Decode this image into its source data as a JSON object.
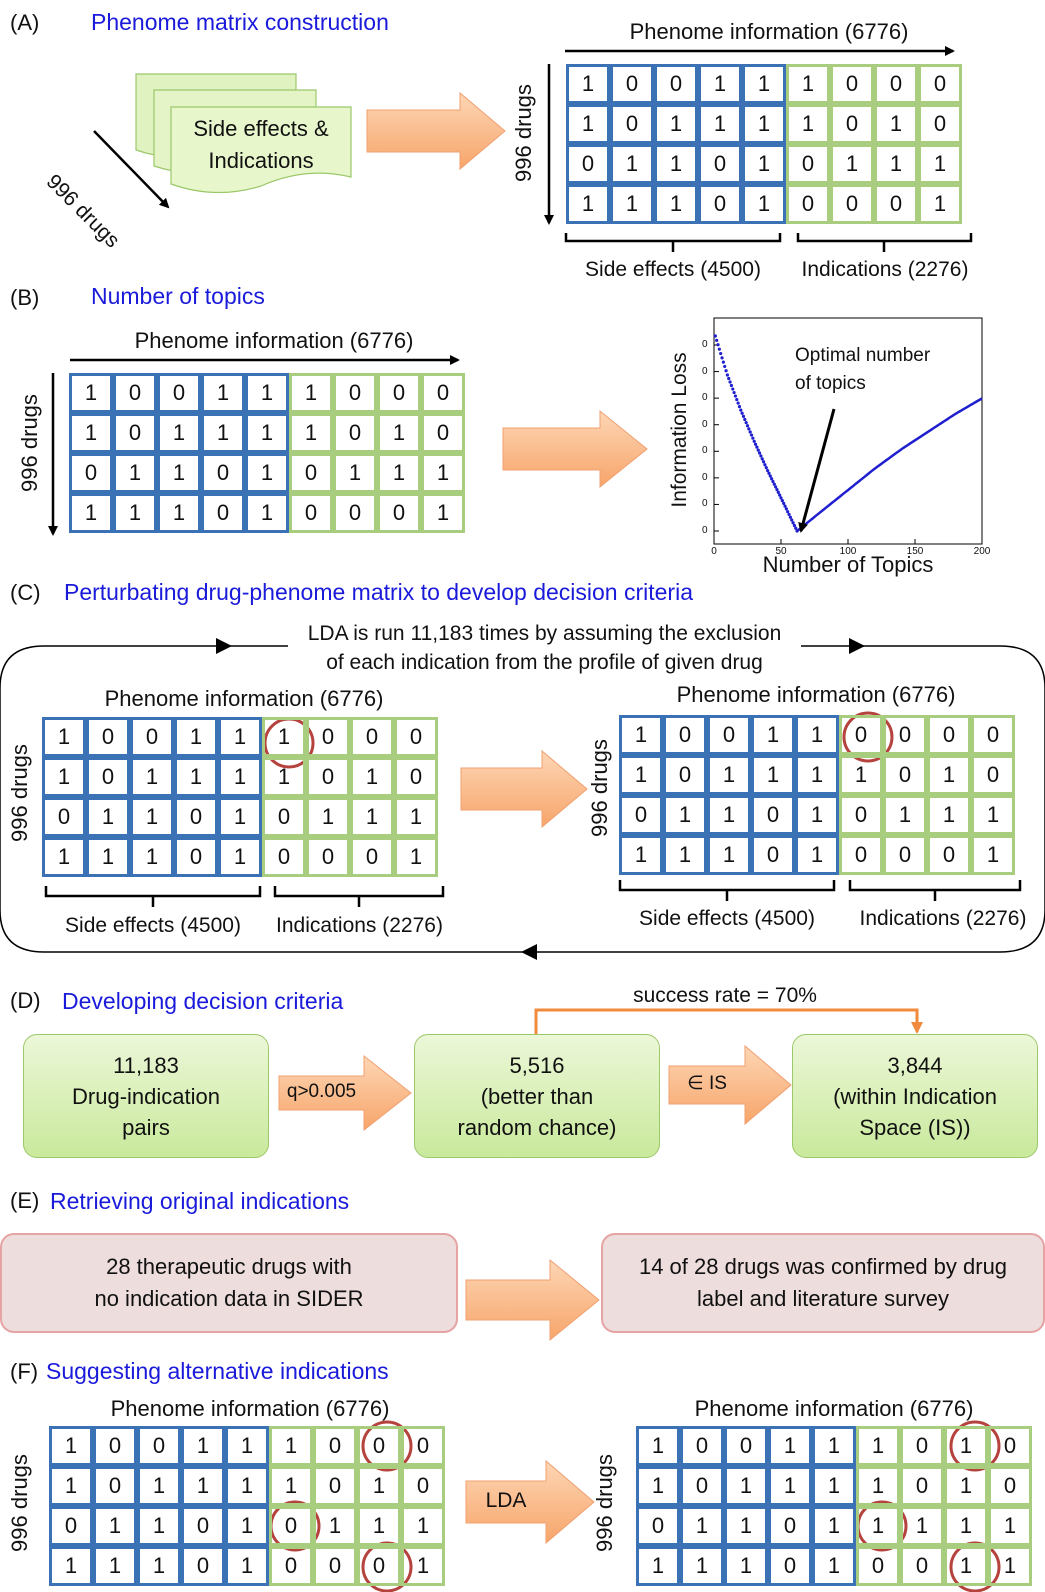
{
  "panels": {
    "a": {
      "letter": "(A)",
      "title": "Phenome matrix construction"
    },
    "b": {
      "letter": "(B)",
      "title": "Number of topics"
    },
    "c": {
      "letter": "(C)",
      "title": "Perturbating drug-phenome matrix to develop decision criteria"
    },
    "d": {
      "letter": "(D)",
      "title": "Developing decision criteria"
    },
    "e": {
      "letter": "(E)",
      "title": "Retrieving original indications"
    },
    "f": {
      "letter": "(F)",
      "title": "Suggesting alternative indications"
    }
  },
  "labels": {
    "phenome": "Phenome information (6776)",
    "drugs": "996 drugs",
    "side_effects": "Side effects (4500)",
    "indications": "Indications (2276)"
  },
  "panel_a": {
    "doc_line1": "Side effects &",
    "doc_line2": "Indications",
    "drugs_diag": "996 drugs"
  },
  "matrices": {
    "base": [
      [
        1,
        0,
        0,
        1,
        1,
        1,
        0,
        0,
        0
      ],
      [
        1,
        0,
        1,
        1,
        1,
        1,
        0,
        1,
        0
      ],
      [
        0,
        1,
        1,
        0,
        1,
        0,
        1,
        1,
        1
      ],
      [
        1,
        1,
        1,
        0,
        1,
        0,
        0,
        0,
        1
      ]
    ],
    "c_right": [
      [
        1,
        0,
        0,
        1,
        1,
        0,
        0,
        0,
        0
      ],
      [
        1,
        0,
        1,
        1,
        1,
        1,
        0,
        1,
        0
      ],
      [
        0,
        1,
        1,
        0,
        1,
        0,
        1,
        1,
        1
      ],
      [
        1,
        1,
        1,
        0,
        1,
        0,
        0,
        0,
        1
      ]
    ],
    "f_right": [
      [
        1,
        0,
        0,
        1,
        1,
        1,
        0,
        1,
        0
      ],
      [
        1,
        0,
        1,
        1,
        1,
        1,
        0,
        1,
        0
      ],
      [
        0,
        1,
        1,
        0,
        1,
        1,
        1,
        1,
        1
      ],
      [
        1,
        1,
        1,
        0,
        1,
        0,
        0,
        1,
        1
      ]
    ]
  },
  "chart_b": {
    "ylabel": "Information Loss",
    "xlabel": "Number of Topics",
    "annotation_line1": "Optimal number",
    "annotation_line2": "of topics",
    "x_ticks": [
      "0",
      "50",
      "100",
      "150",
      "200"
    ],
    "y_ticks": [
      "0",
      "0",
      "0",
      "0",
      "0",
      "0",
      "0",
      "0"
    ],
    "xlim": [
      0,
      200
    ]
  },
  "chart_data": {
    "type": "line",
    "title": "",
    "xlabel": "Number of Topics",
    "ylabel": "Information Loss",
    "xlim": [
      0,
      200
    ],
    "annotation": "Optimal number of topics",
    "x_optimal": 62,
    "series": [
      {
        "x": [
          1,
          5,
          10,
          20,
          30,
          40,
          50,
          62,
          80,
          100,
          120,
          140,
          160,
          180,
          200
        ],
        "y": [
          1.0,
          0.91,
          0.8,
          0.62,
          0.46,
          0.31,
          0.17,
          0.0,
          0.1,
          0.21,
          0.32,
          0.42,
          0.51,
          0.6,
          0.68
        ]
      }
    ]
  },
  "panel_c": {
    "loop_line1": "LDA is run 11,183 times by assuming the exclusion",
    "loop_line2": "of each indication from the profile of given drug"
  },
  "panel_d": {
    "success": "success rate = 70%",
    "box1": [
      "11,183",
      "Drug-indication",
      "pairs"
    ],
    "arrow1": "q>0.005",
    "box2": [
      "5,516",
      "(better than",
      "random chance)"
    ],
    "arrow2": "∈ IS",
    "box3": [
      "3,844",
      "(within Indication",
      "Space (IS))"
    ]
  },
  "panel_e": {
    "box1": [
      "28 therapeutic drugs with",
      "no indication data in SIDER"
    ],
    "box2": [
      "14 of 28 drugs was confirmed by drug",
      "label and literature survey"
    ]
  },
  "panel_f": {
    "arrow": "LDA"
  },
  "colors": {
    "title": "#1a1adb",
    "side_effect_border": "#3a72b5",
    "indication_border": "#a9cd7e",
    "arrow_fill": "#fbbf91",
    "circle": "#b5423c",
    "curve": "#1f1fd0"
  }
}
